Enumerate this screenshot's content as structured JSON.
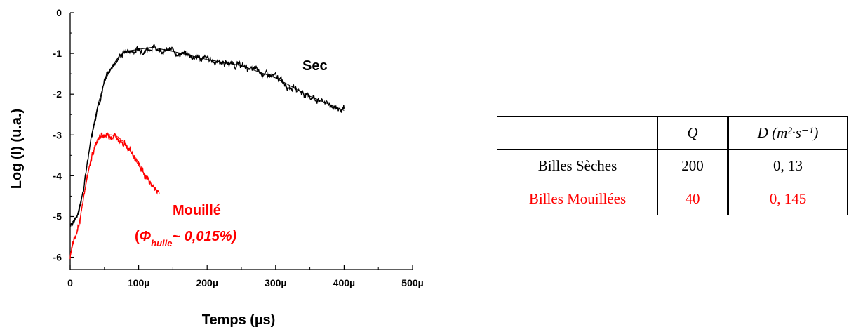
{
  "chart_data": {
    "type": "line",
    "xlabel": "Temps (µs)",
    "ylabel": "Log (I) (u.a.)",
    "xlim": [
      0,
      500
    ],
    "ylim": [
      -6.3,
      0
    ],
    "x_ticks": [
      0,
      100,
      200,
      300,
      400,
      500
    ],
    "x_tick_labels": [
      "0",
      "100µ",
      "200µ",
      "300µ",
      "400µ",
      "500µ"
    ],
    "y_ticks": [
      0,
      -1,
      -2,
      -3,
      -4,
      -5,
      -6
    ],
    "y_tick_labels": [
      "0",
      "-1",
      "-2",
      "-3",
      "-4",
      "-5",
      "-6"
    ],
    "grid": false,
    "series": [
      {
        "name": "Sec",
        "color": "#000000",
        "x": [
          0,
          10,
          20,
          30,
          40,
          50,
          60,
          70,
          80,
          100,
          120,
          150,
          200,
          250,
          300,
          350,
          400
        ],
        "y": [
          -5.2,
          -5.0,
          -4.3,
          -3.1,
          -2.3,
          -1.7,
          -1.35,
          -1.1,
          -0.95,
          -0.9,
          -0.85,
          -0.95,
          -1.15,
          -1.3,
          -1.6,
          -2.05,
          -2.4
        ]
      },
      {
        "name": "Mouillé",
        "color": "#ff0000",
        "x": [
          0,
          5,
          10,
          15,
          20,
          30,
          40,
          50,
          60,
          70,
          80,
          90,
          100,
          110,
          120,
          130
        ],
        "y": [
          -6.0,
          -5.6,
          -5.4,
          -5.0,
          -4.5,
          -3.6,
          -3.1,
          -3.0,
          -3.0,
          -3.05,
          -3.2,
          -3.45,
          -3.75,
          -4.0,
          -4.25,
          -4.4
        ]
      }
    ],
    "annotations": {
      "sec_label": "Sec",
      "mouille_label": "Mouillé",
      "phi_open": "(",
      "phi_symbol": "Φ",
      "phi_sub": "huile",
      "phi_value": "~ 0,015%)"
    }
  },
  "table": {
    "header": [
      "",
      "Q",
      "D",
      "(m²·s⁻¹)"
    ],
    "rows": [
      {
        "label": "Billes Sèches",
        "q": "200",
        "d": "0, 13",
        "color": "#000000"
      },
      {
        "label": "Billes Mouillées",
        "q": "40",
        "d": "0, 145",
        "color": "#ff0000"
      }
    ]
  }
}
